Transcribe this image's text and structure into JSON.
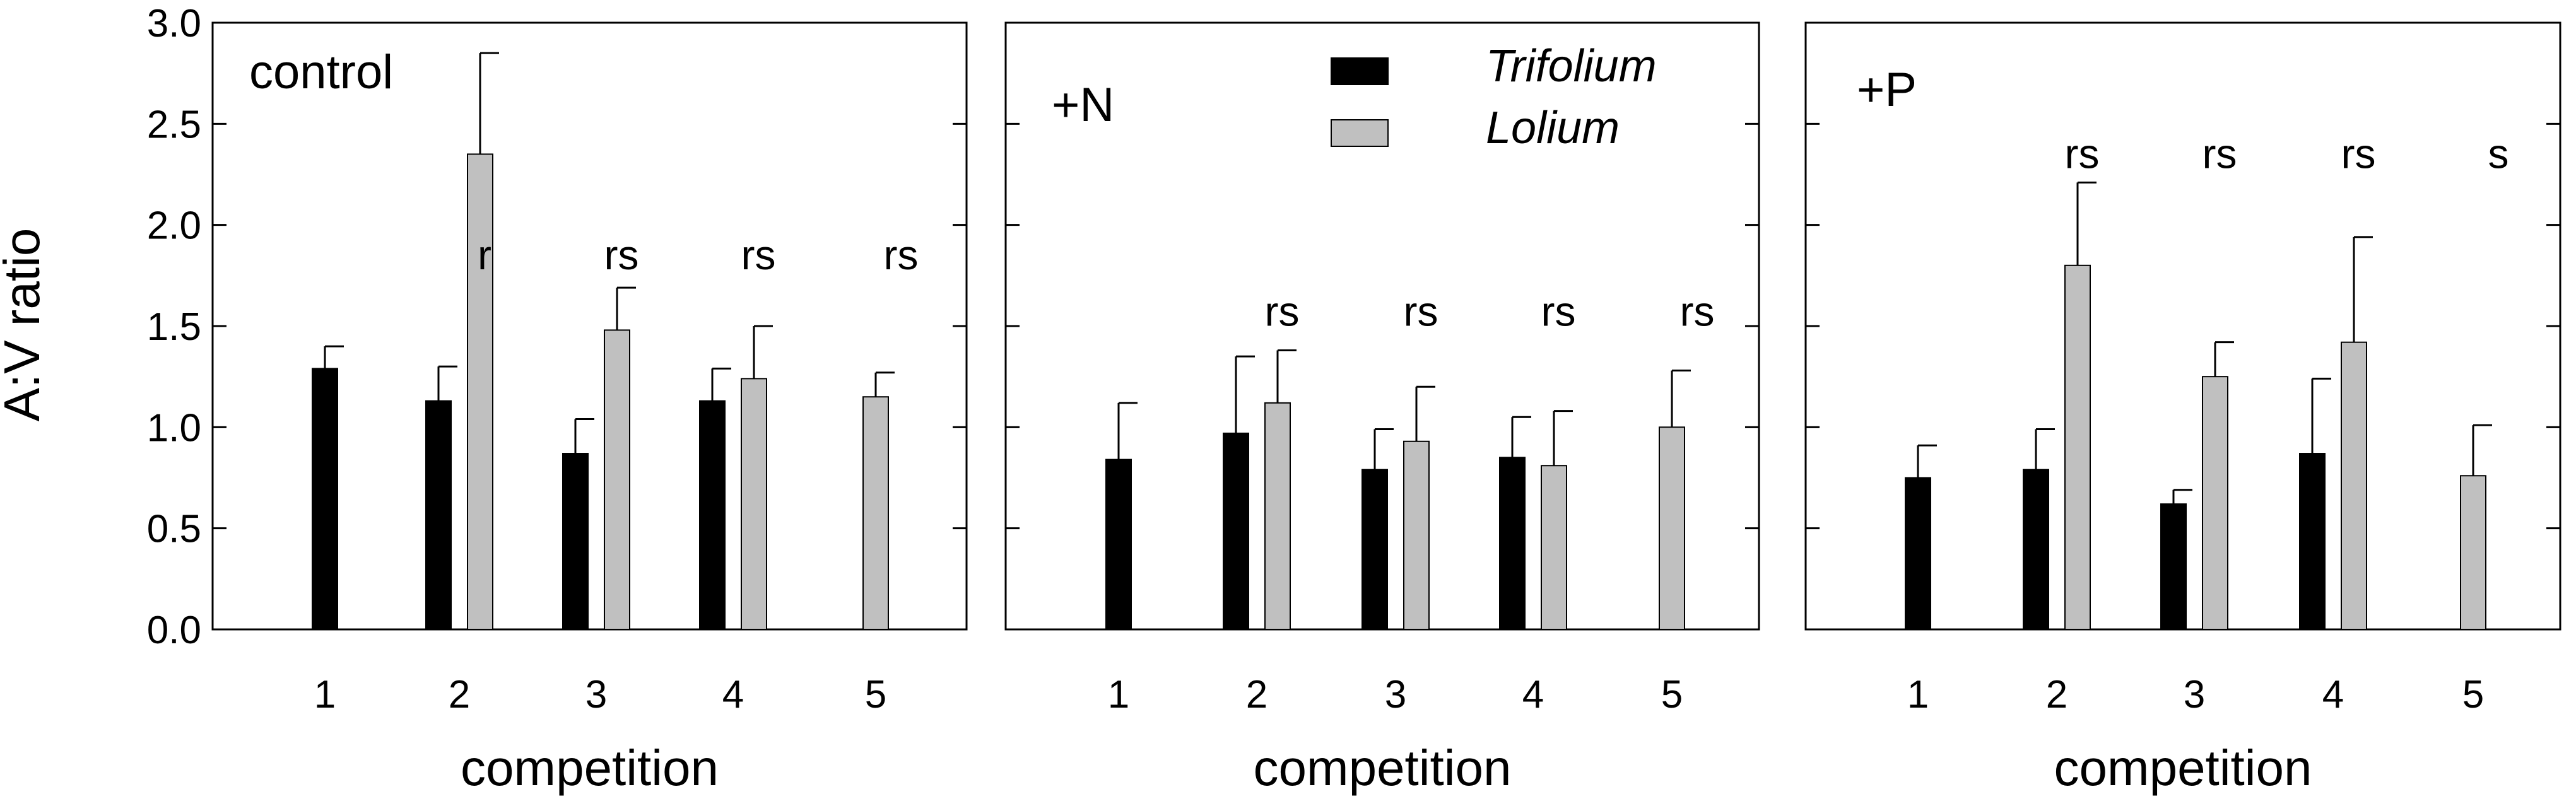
{
  "figure": {
    "y_axis_label": "A:V ratio",
    "y_ticks": [
      "0.0",
      "0.5",
      "1.0",
      "1.5",
      "2.0",
      "2.5",
      "3.0"
    ],
    "legend": [
      {
        "label": "Trifolium",
        "color": "#000000"
      },
      {
        "label": "Lolium",
        "color": "#c0c0c0"
      }
    ]
  },
  "chart_data": [
    {
      "type": "bar",
      "panel_label": "control",
      "xlabel": "competition",
      "ylabel": "A:V ratio",
      "ylim": [
        0,
        3.0
      ],
      "categories": [
        "1",
        "2",
        "3",
        "4",
        "5"
      ],
      "series": [
        {
          "name": "Trifolium",
          "color": "#000000",
          "values": [
            1.29,
            1.13,
            0.87,
            1.13,
            null
          ],
          "errors": [
            0.11,
            0.17,
            0.17,
            0.16,
            null
          ]
        },
        {
          "name": "Lolium",
          "color": "#c0c0c0",
          "values": [
            null,
            2.35,
            1.48,
            1.24,
            1.15
          ],
          "errors": [
            null,
            0.5,
            0.21,
            0.26,
            0.12
          ]
        }
      ],
      "annotations": [
        {
          "category": "2",
          "text": "r",
          "y": 1.85
        },
        {
          "category": "3",
          "text": "rs",
          "y": 1.85
        },
        {
          "category": "4",
          "text": "rs",
          "y": 1.85
        },
        {
          "category": "5",
          "text": "rs",
          "y": 1.85
        }
      ]
    },
    {
      "type": "bar",
      "panel_label": "+N",
      "xlabel": "competition",
      "ylabel": "A:V ratio",
      "ylim": [
        0,
        3.0
      ],
      "categories": [
        "1",
        "2",
        "3",
        "4",
        "5"
      ],
      "series": [
        {
          "name": "Trifolium",
          "color": "#000000",
          "values": [
            0.84,
            0.97,
            0.79,
            0.85,
            null
          ],
          "errors": [
            0.28,
            0.38,
            0.2,
            0.2,
            null
          ]
        },
        {
          "name": "Lolium",
          "color": "#c0c0c0",
          "values": [
            null,
            1.12,
            0.93,
            0.81,
            1.0
          ],
          "errors": [
            null,
            0.26,
            0.27,
            0.27,
            0.28
          ]
        }
      ],
      "annotations": [
        {
          "category": "2",
          "text": "rs",
          "y": 1.57
        },
        {
          "category": "3",
          "text": "rs",
          "y": 1.57
        },
        {
          "category": "4",
          "text": "rs",
          "y": 1.57
        },
        {
          "category": "5",
          "text": "rs",
          "y": 1.57
        }
      ]
    },
    {
      "type": "bar",
      "panel_label": "+P",
      "xlabel": "competition",
      "ylabel": "A:V ratio",
      "ylim": [
        0,
        3.0
      ],
      "categories": [
        "1",
        "2",
        "3",
        "4",
        "5"
      ],
      "series": [
        {
          "name": "Trifolium",
          "color": "#000000",
          "values": [
            0.75,
            0.79,
            0.62,
            0.87,
            null
          ],
          "errors": [
            0.16,
            0.2,
            0.07,
            0.37,
            null
          ]
        },
        {
          "name": "Lolium",
          "color": "#c0c0c0",
          "values": [
            null,
            1.8,
            1.25,
            1.42,
            0.76
          ],
          "errors": [
            null,
            0.41,
            0.17,
            0.52,
            0.25
          ]
        }
      ],
      "annotations": [
        {
          "category": "2",
          "text": "rs",
          "y": 2.35
        },
        {
          "category": "3",
          "text": "rs",
          "y": 2.35
        },
        {
          "category": "4",
          "text": "rs",
          "y": 2.35
        },
        {
          "category": "5",
          "text": "s",
          "y": 2.35
        }
      ]
    }
  ]
}
